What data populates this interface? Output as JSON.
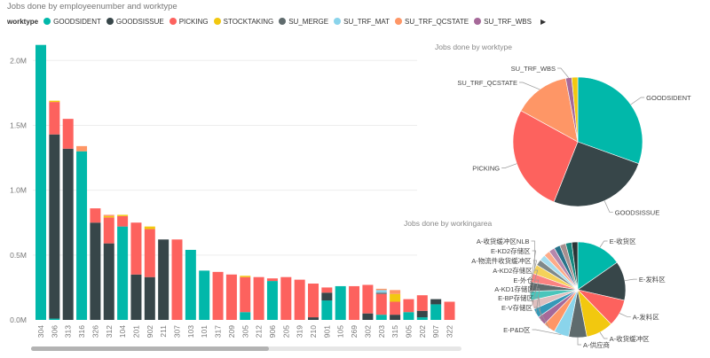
{
  "title": "Jobs done by employeenumber and worktype",
  "legend": {
    "label": "worktype",
    "items": [
      {
        "name": "GOODSIDENT",
        "color": "#01B8AA"
      },
      {
        "name": "GOODSISSUE",
        "color": "#374649"
      },
      {
        "name": "PICKING",
        "color": "#FD625E"
      },
      {
        "name": "STOCKTAKING",
        "color": "#F2C80F"
      },
      {
        "name": "SU_MERGE",
        "color": "#5F6B6D"
      },
      {
        "name": "SU_TRF_MAT",
        "color": "#8AD4EB"
      },
      {
        "name": "SU_TRF_QCSTATE",
        "color": "#FE9666"
      },
      {
        "name": "SU_TRF_WBS",
        "color": "#A66999"
      }
    ],
    "more_icon": "triangle-right-icon"
  },
  "chart_data": [
    {
      "type": "bar",
      "stacked": true,
      "title": "Jobs done by employeenumber and worktype",
      "y_ticks": [
        "0.0M",
        "0.5M",
        "1.0M",
        "1.5M",
        "2.0M"
      ],
      "ylim": [
        0,
        2200000
      ],
      "grid": true,
      "categories": [
        "304",
        "306",
        "313",
        "316",
        "326",
        "312",
        "104",
        "201",
        "902",
        "211",
        "307",
        "103",
        "101",
        "317",
        "209",
        "305",
        "212",
        "906",
        "205",
        "319",
        "210",
        "901",
        "105",
        "269",
        "302",
        "203",
        "315",
        "905",
        "202",
        "907",
        "322"
      ],
      "series": [
        {
          "name": "GOODSIDENT",
          "color": "#01B8AA",
          "values": [
            2120000,
            10000,
            0,
            1300000,
            0,
            0,
            720000,
            0,
            0,
            0,
            0,
            540000,
            380000,
            0,
            0,
            60000,
            0,
            300000,
            0,
            0,
            0,
            150000,
            260000,
            0,
            0,
            40000,
            0,
            60000,
            20000,
            120000,
            0
          ]
        },
        {
          "name": "GOODSISSUE",
          "color": "#374649",
          "values": [
            0,
            1420000,
            1320000,
            0,
            750000,
            590000,
            0,
            350000,
            330000,
            620000,
            0,
            0,
            0,
            0,
            0,
            0,
            0,
            0,
            0,
            0,
            20000,
            60000,
            0,
            0,
            50000,
            0,
            40000,
            0,
            50000,
            40000,
            0
          ]
        },
        {
          "name": "PICKING",
          "color": "#FD625E",
          "values": [
            0,
            250000,
            230000,
            0,
            110000,
            200000,
            80000,
            400000,
            370000,
            0,
            620000,
            0,
            0,
            370000,
            350000,
            270000,
            330000,
            20000,
            330000,
            310000,
            260000,
            40000,
            0,
            260000,
            220000,
            160000,
            100000,
            100000,
            120000,
            0,
            140000
          ]
        },
        {
          "name": "STOCKTAKING",
          "color": "#F2C80F",
          "values": [
            0,
            10000,
            0,
            0,
            0,
            10000,
            10000,
            0,
            20000,
            0,
            0,
            0,
            0,
            0,
            0,
            10000,
            0,
            0,
            0,
            0,
            0,
            0,
            0,
            0,
            0,
            0,
            60000,
            0,
            0,
            0,
            0
          ]
        },
        {
          "name": "SU_MERGE",
          "color": "#5F6B6D",
          "values": [
            0,
            0,
            0,
            0,
            0,
            0,
            0,
            0,
            0,
            0,
            0,
            0,
            0,
            0,
            0,
            0,
            0,
            0,
            0,
            0,
            0,
            0,
            0,
            0,
            0,
            10000,
            0,
            0,
            0,
            0,
            0
          ]
        },
        {
          "name": "SU_TRF_MAT",
          "color": "#8AD4EB",
          "values": [
            0,
            0,
            0,
            0,
            0,
            0,
            0,
            0,
            0,
            0,
            0,
            0,
            0,
            0,
            0,
            0,
            0,
            0,
            0,
            0,
            0,
            0,
            0,
            0,
            0,
            20000,
            0,
            0,
            0,
            0,
            0
          ]
        },
        {
          "name": "SU_TRF_QCSTATE",
          "color": "#FE9666",
          "values": [
            0,
            0,
            0,
            40000,
            0,
            10000,
            0,
            0,
            0,
            0,
            0,
            0,
            0,
            0,
            0,
            0,
            0,
            0,
            0,
            0,
            0,
            0,
            0,
            0,
            0,
            10000,
            30000,
            0,
            0,
            0,
            0
          ]
        },
        {
          "name": "SU_TRF_WBS",
          "color": "#A66999",
          "values": [
            0,
            0,
            0,
            0,
            0,
            0,
            0,
            0,
            0,
            0,
            0,
            0,
            0,
            0,
            0,
            0,
            0,
            0,
            0,
            0,
            0,
            0,
            0,
            0,
            0,
            0,
            0,
            0,
            0,
            0,
            0
          ]
        }
      ]
    },
    {
      "type": "pie",
      "title": "Jobs done by worktype",
      "slices": [
        {
          "label": "GOODSIDENT",
          "value": 30.5,
          "color": "#01B8AA",
          "show_label": true
        },
        {
          "label": "GOODSISSUE",
          "value": 25.5,
          "color": "#374649",
          "show_label": true
        },
        {
          "label": "PICKING",
          "value": 27.0,
          "color": "#FD625E",
          "show_label": true
        },
        {
          "label": "SU_TRF_QCSTATE",
          "value": 14.0,
          "color": "#FE9666",
          "show_label": true
        },
        {
          "label": "SU_TRF_WBS",
          "value": 1.5,
          "color": "#A66999",
          "show_label": true
        },
        {
          "label": "STOCKTAKING",
          "value": 1.5,
          "color": "#F2C80F",
          "show_label": false
        }
      ]
    },
    {
      "type": "pie",
      "title": "Jobs done by workingarea",
      "slices": [
        {
          "label": "E-收货区",
          "value": 15,
          "color": "#01B8AA",
          "show_label": true
        },
        {
          "label": "E-发料区",
          "value": 13,
          "color": "#374649",
          "show_label": true
        },
        {
          "label": "A-发料区",
          "value": 9,
          "color": "#FD625E",
          "show_label": true
        },
        {
          "label": "A-收货缓冲区",
          "value": 9,
          "color": "#F2C80F",
          "show_label": true
        },
        {
          "label": "A-供应商",
          "value": 6,
          "color": "#5F6B6D",
          "show_label": true
        },
        {
          "label": "E-P&D区",
          "value": 5,
          "color": "#8AD4EB",
          "show_label": true
        },
        {
          "label": "E-V存储区",
          "value": 4,
          "color": "#FE9666",
          "show_label": true
        },
        {
          "label": "E-BP存储区",
          "value": 3,
          "color": "#A66999",
          "show_label": true
        },
        {
          "label": "A-KD1存储区",
          "value": 3,
          "color": "#3599B8",
          "show_label": true
        },
        {
          "label": "E-外仓",
          "value": 3,
          "color": "#DFBFBF",
          "show_label": true
        },
        {
          "label": "A-KD2存储区",
          "value": 3,
          "color": "#4AC5BB",
          "show_label": true
        },
        {
          "label": "A-物流件收货缓冲区",
          "value": 3,
          "color": "#5F6B6D",
          "show_label": true
        },
        {
          "label": "E-KD2存储区",
          "value": 3,
          "color": "#FB8281",
          "show_label": true
        },
        {
          "label": "A-收货缓冲区NLB",
          "value": 3,
          "color": "#F4D25A",
          "show_label": true
        },
        {
          "label": "",
          "value": 2,
          "color": "#7F898A",
          "show_label": false
        },
        {
          "label": "",
          "value": 2,
          "color": "#A4DDEE",
          "show_label": false
        },
        {
          "label": "",
          "value": 2,
          "color": "#FDAB89",
          "show_label": false
        },
        {
          "label": "",
          "value": 2,
          "color": "#B687AC",
          "show_label": false
        },
        {
          "label": "",
          "value": 2,
          "color": "#28738A",
          "show_label": false
        },
        {
          "label": "",
          "value": 2,
          "color": "#A78F8F",
          "show_label": false
        },
        {
          "label": "",
          "value": 2,
          "color": "#168980",
          "show_label": false
        },
        {
          "label": "",
          "value": 2,
          "color": "#293537",
          "show_label": false
        }
      ]
    }
  ]
}
